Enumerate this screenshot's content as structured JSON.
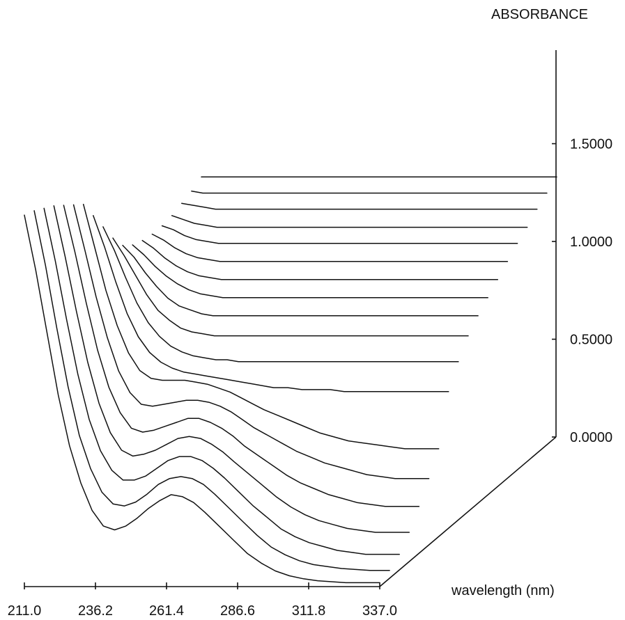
{
  "chart_data": {
    "type": "line",
    "projection": "3d-waterfall",
    "xlabel": "wavelength (nm)",
    "ylabel": "ABSORBANCE",
    "x_ticks": [
      "211.0",
      "236.2",
      "261.4",
      "286.6",
      "311.8",
      "337.0"
    ],
    "y_ticks": [
      "0.0000",
      "0.5000",
      "1.0000",
      "1.5000"
    ],
    "xlim": [
      211.0,
      337.0
    ],
    "ylim": [
      0,
      1.9
    ],
    "grid": false,
    "x": [
      211,
      215,
      219,
      223,
      227,
      231,
      235,
      239,
      243,
      247,
      251,
      255,
      259,
      263,
      267,
      271,
      275,
      280,
      285,
      290,
      295,
      300,
      305,
      310,
      315,
      320,
      325,
      330,
      337
    ],
    "series": [
      {
        "values": [
          1.9,
          1.62,
          1.3,
          0.98,
          0.72,
          0.53,
          0.39,
          0.31,
          0.29,
          0.31,
          0.35,
          0.4,
          0.44,
          0.47,
          0.46,
          0.43,
          0.38,
          0.31,
          0.24,
          0.17,
          0.12,
          0.08,
          0.055,
          0.04,
          0.03,
          0.025,
          0.02,
          0.02,
          0.02
        ]
      },
      {
        "values": [
          1.88,
          1.6,
          1.28,
          0.98,
          0.73,
          0.56,
          0.44,
          0.38,
          0.37,
          0.39,
          0.43,
          0.48,
          0.51,
          0.52,
          0.51,
          0.48,
          0.43,
          0.36,
          0.29,
          0.22,
          0.16,
          0.12,
          0.09,
          0.07,
          0.06,
          0.05,
          0.045,
          0.04,
          0.04
        ]
      },
      {
        "values": [
          1.85,
          1.58,
          1.28,
          1.0,
          0.77,
          0.61,
          0.51,
          0.46,
          0.46,
          0.48,
          0.52,
          0.56,
          0.58,
          0.58,
          0.56,
          0.52,
          0.47,
          0.4,
          0.33,
          0.27,
          0.21,
          0.17,
          0.14,
          0.12,
          0.1,
          0.09,
          0.08,
          0.08,
          0.08
        ]
      },
      {
        "values": [
          1.82,
          1.56,
          1.28,
          1.02,
          0.81,
          0.66,
          0.57,
          0.54,
          0.55,
          0.57,
          0.6,
          0.63,
          0.64,
          0.63,
          0.6,
          0.56,
          0.51,
          0.45,
          0.39,
          0.33,
          0.28,
          0.24,
          0.21,
          0.19,
          0.17,
          0.16,
          0.15,
          0.15,
          0.15
        ]
      },
      {
        "values": [
          1.78,
          1.54,
          1.28,
          1.04,
          0.85,
          0.72,
          0.64,
          0.62,
          0.63,
          0.65,
          0.67,
          0.69,
          0.69,
          0.67,
          0.64,
          0.6,
          0.55,
          0.5,
          0.45,
          0.4,
          0.36,
          0.33,
          0.3,
          0.28,
          0.26,
          0.25,
          0.24,
          0.24,
          0.24
        ]
      },
      {
        "values": [
          1.74,
          1.51,
          1.27,
          1.06,
          0.89,
          0.78,
          0.72,
          0.71,
          0.72,
          0.73,
          0.74,
          0.74,
          0.73,
          0.71,
          0.68,
          0.64,
          0.6,
          0.56,
          0.52,
          0.48,
          0.45,
          0.42,
          0.4,
          0.38,
          0.36,
          0.35,
          0.34,
          0.34,
          0.34
        ]
      },
      {
        "values": [
          1.7,
          1.48,
          1.26,
          1.08,
          0.94,
          0.85,
          0.81,
          0.8,
          0.8,
          0.8,
          0.79,
          0.78,
          0.76,
          0.74,
          0.71,
          0.68,
          0.65,
          0.62,
          0.59,
          0.56,
          0.53,
          0.51,
          0.49,
          0.48,
          0.47,
          0.46,
          0.45,
          0.45,
          0.45
        ]
      },
      {
        "values": [
          1.6,
          1.44,
          1.26,
          1.1,
          0.98,
          0.9,
          0.85,
          0.82,
          0.8,
          0.79,
          0.78,
          0.77,
          0.76,
          0.75,
          0.74,
          0.73,
          0.72,
          0.72,
          0.71,
          0.71,
          0.71,
          0.7,
          0.7,
          0.7,
          0.7,
          0.7,
          0.7,
          0.7,
          0.7
        ]
      },
      {
        "values": [
          1.5,
          1.38,
          1.24,
          1.11,
          1.01,
          0.94,
          0.89,
          0.86,
          0.84,
          0.83,
          0.82,
          0.82,
          0.81,
          0.81,
          0.81,
          0.81,
          0.81,
          0.81,
          0.81,
          0.81,
          0.81,
          0.81,
          0.81,
          0.81,
          0.81,
          0.81,
          0.81,
          0.81,
          0.81
        ]
      },
      {
        "values": [
          1.4,
          1.31,
          1.21,
          1.11,
          1.03,
          0.98,
          0.94,
          0.92,
          0.91,
          0.9,
          0.9,
          0.9,
          0.9,
          0.9,
          0.9,
          0.9,
          0.9,
          0.9,
          0.9,
          0.9,
          0.9,
          0.9,
          0.9,
          0.9,
          0.9,
          0.9,
          0.9,
          0.9,
          0.9
        ]
      },
      {
        "values": [
          1.32,
          1.26,
          1.18,
          1.11,
          1.05,
          1.01,
          0.99,
          0.97,
          0.96,
          0.96,
          0.96,
          0.96,
          0.96,
          0.96,
          0.96,
          0.96,
          0.96,
          0.96,
          0.96,
          0.96,
          0.96,
          0.96,
          0.96,
          0.96,
          0.96,
          0.96,
          0.96,
          0.96,
          0.96
        ]
      },
      {
        "values": [
          1.28,
          1.23,
          1.17,
          1.12,
          1.08,
          1.05,
          1.03,
          1.02,
          1.01,
          1.01,
          1.01,
          1.01,
          1.01,
          1.01,
          1.01,
          1.01,
          1.01,
          1.01,
          1.01,
          1.01,
          1.01,
          1.01,
          1.01,
          1.01,
          1.01,
          1.01,
          1.01,
          1.01,
          1.01
        ]
      },
      {
        "values": [
          1.26,
          1.22,
          1.17,
          1.13,
          1.1,
          1.08,
          1.07,
          1.06,
          1.06,
          1.06,
          1.06,
          1.06,
          1.06,
          1.06,
          1.06,
          1.06,
          1.06,
          1.06,
          1.06,
          1.06,
          1.06,
          1.06,
          1.06,
          1.06,
          1.06,
          1.06,
          1.06,
          1.06,
          1.06
        ]
      },
      {
        "values": [
          1.25,
          1.22,
          1.18,
          1.15,
          1.13,
          1.12,
          1.11,
          1.11,
          1.11,
          1.11,
          1.11,
          1.11,
          1.11,
          1.11,
          1.11,
          1.11,
          1.11,
          1.11,
          1.11,
          1.11,
          1.11,
          1.11,
          1.11,
          1.11,
          1.11,
          1.11,
          1.11,
          1.11,
          1.11
        ]
      },
      {
        "values": [
          1.25,
          1.23,
          1.2,
          1.18,
          1.17,
          1.16,
          1.16,
          1.16,
          1.16,
          1.16,
          1.16,
          1.16,
          1.16,
          1.16,
          1.16,
          1.16,
          1.16,
          1.16,
          1.16,
          1.16,
          1.16,
          1.16,
          1.16,
          1.16,
          1.16,
          1.16,
          1.16,
          1.16,
          1.16
        ]
      },
      {
        "values": [
          1.26,
          1.24,
          1.22,
          1.21,
          1.2,
          1.2,
          1.2,
          1.2,
          1.2,
          1.2,
          1.2,
          1.2,
          1.2,
          1.2,
          1.2,
          1.2,
          1.2,
          1.2,
          1.2,
          1.2,
          1.2,
          1.2,
          1.2,
          1.2,
          1.2,
          1.2,
          1.2,
          1.2,
          1.2
        ]
      },
      {
        "values": [
          1.28,
          1.27,
          1.26,
          1.25,
          1.25,
          1.25,
          1.25,
          1.25,
          1.25,
          1.25,
          1.25,
          1.25,
          1.25,
          1.25,
          1.25,
          1.25,
          1.25,
          1.25,
          1.25,
          1.25,
          1.25,
          1.25,
          1.25,
          1.25,
          1.25,
          1.25,
          1.25,
          1.25,
          1.25
        ]
      },
      {
        "values": [
          1.3,
          1.29,
          1.29,
          1.29,
          1.29,
          1.29,
          1.29,
          1.29,
          1.29,
          1.29,
          1.29,
          1.29,
          1.29,
          1.29,
          1.29,
          1.29,
          1.29,
          1.29,
          1.29,
          1.29,
          1.29,
          1.29,
          1.29,
          1.29,
          1.29,
          1.29,
          1.29,
          1.29,
          1.29
        ]
      },
      {
        "values": [
          1.33,
          1.33,
          1.33,
          1.33,
          1.33,
          1.33,
          1.33,
          1.33,
          1.33,
          1.33,
          1.33,
          1.33,
          1.33,
          1.33,
          1.33,
          1.33,
          1.33,
          1.33,
          1.33,
          1.33,
          1.33,
          1.33,
          1.33,
          1.33,
          1.33,
          1.33,
          1.33,
          1.33,
          1.33
        ]
      }
    ]
  }
}
